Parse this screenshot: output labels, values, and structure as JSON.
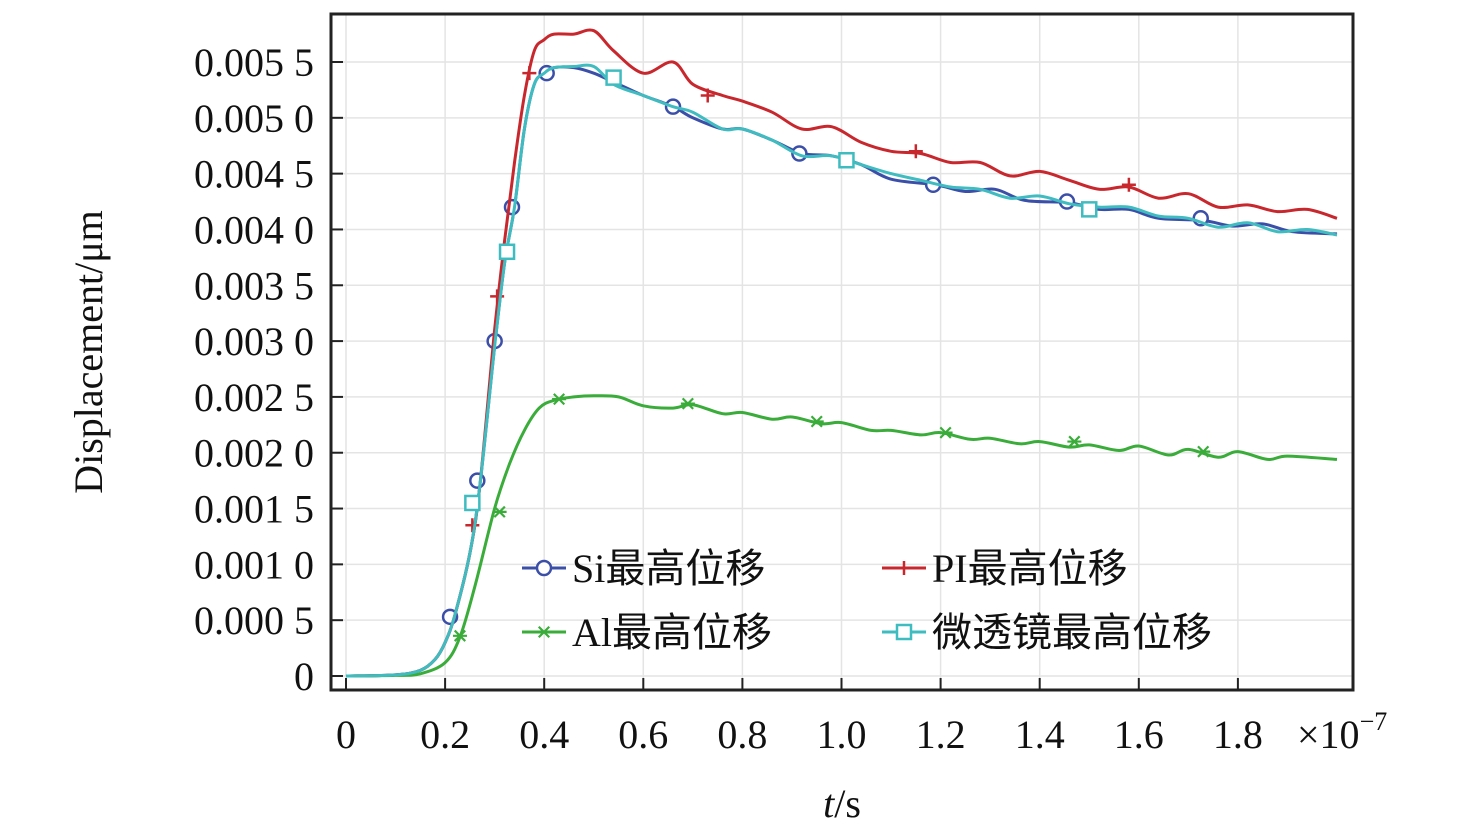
{
  "chart_data": {
    "type": "line",
    "xlabel_italic": "t",
    "xlabel_unit": "/s",
    "ylabel": "Displacement/μm",
    "x_multiplier": "×10",
    "x_multiplier_exp": "−7",
    "xlim": [
      0,
      2.0
    ],
    "ylim": [
      0,
      0.0055
    ],
    "grid": true,
    "legend_position": "bottom-right",
    "x_ticks": [
      0,
      0.2,
      0.4,
      0.6,
      0.8,
      1.0,
      1.2,
      1.4,
      1.6,
      1.8
    ],
    "x_tick_labels": [
      "0",
      "0.2",
      "0.4",
      "0.6",
      "0.8",
      "1.0",
      "1.2",
      "1.4",
      "1.6",
      "1.8"
    ],
    "y_ticks": [
      0,
      0.0005,
      0.001,
      0.0015,
      0.002,
      0.0025,
      0.003,
      0.0035,
      0.004,
      0.0045,
      0.005,
      0.0055
    ],
    "y_tick_labels": [
      "0",
      "0.000 5",
      "0.001 0",
      "0.001 5",
      "0.002 0",
      "0.002 5",
      "0.003 0",
      "0.003 5",
      "0.004 0",
      "0.004 5",
      "0.005 0",
      "0.005 5"
    ],
    "series": [
      {
        "name": "Si最高位移",
        "color": "#3b4fa8",
        "marker": "circle",
        "x": [
          0,
          0.1,
          0.15,
          0.18,
          0.2,
          0.22,
          0.25,
          0.27,
          0.3,
          0.32,
          0.34,
          0.36,
          0.38,
          0.4,
          0.42,
          0.46,
          0.5,
          0.55,
          0.6,
          0.66,
          0.7,
          0.76,
          0.8,
          0.86,
          0.92,
          0.98,
          1.04,
          1.1,
          1.19,
          1.25,
          1.31,
          1.37,
          1.46,
          1.52,
          1.58,
          1.64,
          1.73,
          1.79,
          1.85,
          1.91,
          2.0
        ],
        "values": [
          0,
          1e-05,
          5e-05,
          0.00015,
          0.0003,
          0.00055,
          0.0011,
          0.0017,
          0.00295,
          0.0037,
          0.0042,
          0.0049,
          0.0053,
          0.0054,
          0.00545,
          0.00545,
          0.0054,
          0.0053,
          0.0052,
          0.0051,
          0.005,
          0.0049,
          0.0049,
          0.0048,
          0.00468,
          0.00466,
          0.00458,
          0.00445,
          0.0044,
          0.00434,
          0.00436,
          0.00426,
          0.00424,
          0.00418,
          0.00418,
          0.0041,
          0.00408,
          0.00403,
          0.00405,
          0.00398,
          0.00396
        ],
        "markers_x": [
          0.21,
          0.265,
          0.3,
          0.335,
          0.405,
          0.66,
          0.915,
          1.185,
          1.455,
          1.725
        ],
        "markers_y": [
          0.00053,
          0.00175,
          0.003,
          0.0042,
          0.0054,
          0.0051,
          0.00468,
          0.0044,
          0.00425,
          0.0041
        ]
      },
      {
        "name": "PI最高位移",
        "color": "#c8282d",
        "marker": "plus",
        "x": [
          0,
          0.1,
          0.15,
          0.18,
          0.2,
          0.22,
          0.25,
          0.27,
          0.3,
          0.32,
          0.34,
          0.36,
          0.38,
          0.4,
          0.42,
          0.46,
          0.5,
          0.54,
          0.6,
          0.66,
          0.7,
          0.76,
          0.8,
          0.86,
          0.92,
          0.98,
          1.04,
          1.1,
          1.16,
          1.22,
          1.28,
          1.34,
          1.4,
          1.46,
          1.52,
          1.58,
          1.64,
          1.7,
          1.76,
          1.82,
          1.88,
          1.94,
          2.0
        ],
        "values": [
          0,
          1e-05,
          5e-05,
          0.00015,
          0.0003,
          0.00055,
          0.0011,
          0.0017,
          0.0031,
          0.0039,
          0.0046,
          0.0052,
          0.0056,
          0.0057,
          0.00575,
          0.00575,
          0.00578,
          0.0056,
          0.0054,
          0.0055,
          0.0053,
          0.0052,
          0.00515,
          0.00505,
          0.0049,
          0.00492,
          0.00478,
          0.0047,
          0.00468,
          0.0046,
          0.0046,
          0.00448,
          0.00452,
          0.00444,
          0.00436,
          0.00438,
          0.00428,
          0.00432,
          0.0042,
          0.00422,
          0.00416,
          0.00418,
          0.0041
        ],
        "markers_x": [
          0.255,
          0.305,
          0.37,
          0.73,
          1.15,
          1.58
        ],
        "markers_y": [
          0.00135,
          0.0034,
          0.0054,
          0.0052,
          0.0047,
          0.0044
        ]
      },
      {
        "name": "Al最高位移",
        "color": "#3aac3a",
        "marker": "asterisk",
        "x": [
          0,
          0.1,
          0.15,
          0.2,
          0.23,
          0.26,
          0.3,
          0.33,
          0.36,
          0.39,
          0.42,
          0.46,
          0.5,
          0.55,
          0.6,
          0.66,
          0.7,
          0.76,
          0.8,
          0.86,
          0.9,
          0.96,
          1.0,
          1.06,
          1.1,
          1.16,
          1.2,
          1.26,
          1.3,
          1.36,
          1.4,
          1.46,
          1.5,
          1.56,
          1.6,
          1.66,
          1.7,
          1.76,
          1.8,
          1.86,
          1.9,
          2.0
        ],
        "values": [
          0,
          5e-06,
          2e-05,
          0.00012,
          0.00035,
          0.0008,
          0.0015,
          0.0019,
          0.0022,
          0.0024,
          0.00247,
          0.0025,
          0.00251,
          0.0025,
          0.00242,
          0.0024,
          0.00243,
          0.00235,
          0.00236,
          0.0023,
          0.00232,
          0.00226,
          0.00227,
          0.0022,
          0.0022,
          0.00216,
          0.00218,
          0.00212,
          0.00213,
          0.00208,
          0.0021,
          0.00205,
          0.00207,
          0.00202,
          0.00206,
          0.00198,
          0.00203,
          0.00196,
          0.00201,
          0.00194,
          0.00197,
          0.00194
        ],
        "markers_x": [
          0.23,
          0.31,
          0.43,
          0.69,
          0.95,
          1.21,
          1.47,
          1.73
        ],
        "markers_y": [
          0.00036,
          0.00147,
          0.00248,
          0.00244,
          0.00228,
          0.00218,
          0.0021,
          0.00201
        ]
      },
      {
        "name": "微透镜最高位移",
        "color": "#3fbcc0",
        "marker": "square",
        "x": [
          0,
          0.1,
          0.15,
          0.18,
          0.2,
          0.22,
          0.25,
          0.27,
          0.3,
          0.32,
          0.34,
          0.36,
          0.38,
          0.4,
          0.42,
          0.46,
          0.5,
          0.54,
          0.6,
          0.66,
          0.7,
          0.76,
          0.8,
          0.86,
          0.92,
          0.98,
          1.04,
          1.1,
          1.16,
          1.22,
          1.28,
          1.34,
          1.4,
          1.46,
          1.52,
          1.58,
          1.64,
          1.7,
          1.76,
          1.82,
          1.88,
          1.94,
          2.0
        ],
        "values": [
          0,
          1e-05,
          5e-05,
          0.00015,
          0.0003,
          0.00055,
          0.0011,
          0.0017,
          0.00295,
          0.0037,
          0.0042,
          0.0049,
          0.0053,
          0.0054,
          0.00545,
          0.00546,
          0.00546,
          0.0053,
          0.0052,
          0.0051,
          0.00505,
          0.0049,
          0.0049,
          0.0048,
          0.00466,
          0.00466,
          0.00458,
          0.0045,
          0.00444,
          0.00438,
          0.00436,
          0.00428,
          0.0043,
          0.00423,
          0.0042,
          0.0042,
          0.00412,
          0.0041,
          0.00402,
          0.00406,
          0.00398,
          0.004,
          0.00395
        ],
        "markers_x": [
          0.255,
          0.325,
          0.54,
          1.01,
          1.5
        ],
        "markers_y": [
          0.00155,
          0.0038,
          0.00536,
          0.00462,
          0.00418
        ]
      }
    ]
  }
}
